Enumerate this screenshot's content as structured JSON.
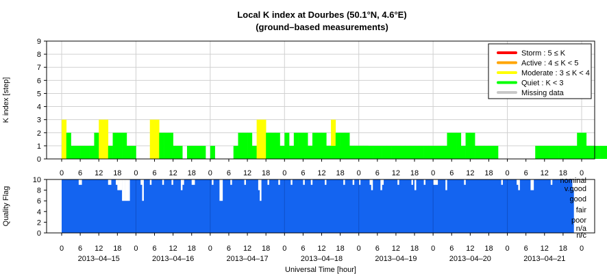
{
  "chart_data": [
    {
      "type": "bar",
      "title": "Local K index at Dourbes (50.1°N, 4.6°E)",
      "subtitle": "(ground–based measurements)",
      "ylabel": "K index [step]",
      "ylim": [
        0,
        9
      ],
      "yticks": [
        "0",
        "1",
        "2",
        "3",
        "4",
        "5",
        "6",
        "7",
        "8",
        "9"
      ],
      "xlim_hours": [
        0,
        168
      ],
      "xticks": [
        "0",
        "6",
        "12",
        "18",
        "0",
        "6",
        "12",
        "18",
        "0",
        "6",
        "12",
        "18",
        "0",
        "6",
        "12",
        "18",
        "0",
        "6",
        "12",
        "18",
        "0",
        "6",
        "12",
        "18",
        "0",
        "6",
        "12",
        "18",
        "0"
      ],
      "grid": true,
      "legend_position": "top-right",
      "legend": [
        {
          "label": "Storm : 5 ≤ K",
          "color": "#ff0000"
        },
        {
          "label": "Active : 4 ≤ K < 5",
          "color": "#ffa500"
        },
        {
          "label": "Moderate : 3 ≤ K < 4",
          "color": "#ffff00"
        },
        {
          "label": "Quiet : K < 3",
          "color": "#00ff00"
        },
        {
          "label": "Missing data",
          "color": "#c8c8c8"
        }
      ],
      "bar_hours": 1.5,
      "series": [
        {
          "start_hour": 0,
          "values": [
            3,
            2,
            1,
            1,
            1,
            1,
            1,
            2,
            3,
            3,
            1,
            2,
            2,
            2,
            1,
            1,
            0,
            0,
            0,
            3,
            3,
            2,
            2,
            2,
            1,
            1,
            0,
            1,
            1,
            1,
            1,
            0,
            1,
            0,
            0,
            0,
            0,
            1,
            2,
            2,
            2,
            1,
            3,
            3,
            2,
            2,
            2,
            1,
            2,
            1,
            2,
            2,
            2,
            1,
            2,
            2,
            2,
            1,
            3,
            2,
            2,
            2,
            1,
            1,
            1,
            1
          ]
        },
        {
          "start_hour": 75,
          "values": [
            1,
            1,
            1,
            1,
            1,
            1,
            1,
            1,
            1,
            1,
            1,
            1,
            1,
            1,
            1,
            1,
            1,
            1,
            1,
            1,
            1,
            1,
            1,
            1,
            1,
            1,
            1,
            1,
            1,
            1,
            1,
            1,
            1,
            2,
            2,
            2,
            1,
            2,
            2,
            1,
            1,
            1,
            1,
            1,
            0,
            0,
            0,
            0,
            0,
            0,
            0,
            0,
            1,
            1,
            1,
            1,
            1,
            1,
            1,
            1,
            1,
            2,
            2,
            1,
            1,
            1,
            1,
            1,
            0,
            1,
            1,
            1,
            0,
            0,
            0,
            0,
            0,
            0,
            0,
            0,
            0,
            0,
            0,
            0,
            0,
            0,
            1,
            1,
            1,
            1,
            1,
            2,
            2,
            2,
            2,
            2,
            2,
            2,
            2,
            2,
            1,
            2,
            2,
            1,
            1,
            1,
            0,
            1,
            1,
            1,
            1,
            1,
            1,
            0,
            0,
            0,
            0,
            0,
            0,
            0,
            0,
            0,
            0,
            0,
            0,
            0,
            1,
            1,
            1,
            1,
            2,
            2,
            1,
            1,
            1,
            1,
            2,
            2,
            2,
            2,
            1,
            1,
            1,
            1,
            1,
            1,
            1,
            1,
            1,
            1,
            1,
            1,
            1,
            1,
            1,
            1
          ]
        }
      ]
    },
    {
      "type": "bar",
      "ylabel": "Quality Flag",
      "xlabel": "Universal Time [hour]",
      "ylim": [
        0,
        10
      ],
      "yticks": [
        "0",
        "2",
        "4",
        "6",
        "8",
        "10"
      ],
      "right_labels": [
        "nominal",
        "v.good",
        "good",
        "fair",
        "poor",
        "n/a",
        "n/c"
      ],
      "xticks": [
        "0",
        "6",
        "12",
        "18",
        "0",
        "6",
        "12",
        "18",
        "0",
        "6",
        "12",
        "18",
        "0",
        "6",
        "12",
        "18",
        "0",
        "6",
        "12",
        "18",
        "0",
        "6",
        "12",
        "18",
        "0",
        "6",
        "12",
        "18",
        "0"
      ],
      "dates": [
        "2013–04–15",
        "2013–04–16",
        "2013–04–17",
        "2013–04–18",
        "2013–04–19",
        "2013–04–20",
        "2013–04–21"
      ],
      "color": "#1464f0",
      "bar_hours": 0.5,
      "dips": [
        {
          "h": 5.5,
          "v": 9
        },
        {
          "h": 6,
          "v": 9
        },
        {
          "h": 15,
          "v": 9
        },
        {
          "h": 15.5,
          "v": 9
        },
        {
          "h": 17.5,
          "v": 9
        },
        {
          "h": 18,
          "v": 8
        },
        {
          "h": 18.5,
          "v": 8
        },
        {
          "h": 19,
          "v": 8
        },
        {
          "h": 19.5,
          "v": 6
        },
        {
          "h": 20,
          "v": 6
        },
        {
          "h": 20.5,
          "v": 6
        },
        {
          "h": 21,
          "v": 6
        },
        {
          "h": 21.5,
          "v": 6
        },
        {
          "h": 25.5,
          "v": 9
        },
        {
          "h": 26,
          "v": 6
        },
        {
          "h": 28.5,
          "v": 9
        },
        {
          "h": 32.5,
          "v": 9
        },
        {
          "h": 35.5,
          "v": 9
        },
        {
          "h": 38.5,
          "v": 8
        },
        {
          "h": 39,
          "v": 9
        },
        {
          "h": 42,
          "v": 9
        },
        {
          "h": 42.5,
          "v": 9
        },
        {
          "h": 48.5,
          "v": 9
        },
        {
          "h": 51,
          "v": 6
        },
        {
          "h": 51.5,
          "v": 6
        },
        {
          "h": 54.5,
          "v": 9
        },
        {
          "h": 59,
          "v": 9
        },
        {
          "h": 63.5,
          "v": 8
        },
        {
          "h": 64,
          "v": 6
        },
        {
          "h": 66.5,
          "v": 9
        },
        {
          "h": 70,
          "v": 9
        },
        {
          "h": 74,
          "v": 9
        },
        {
          "h": 78,
          "v": 9
        },
        {
          "h": 80.5,
          "v": 9
        },
        {
          "h": 85,
          "v": 9
        },
        {
          "h": 91,
          "v": 9
        },
        {
          "h": 94,
          "v": 9
        },
        {
          "h": 96,
          "v": 9
        },
        {
          "h": 99.5,
          "v": 9
        },
        {
          "h": 100,
          "v": 8
        },
        {
          "h": 103,
          "v": 8
        },
        {
          "h": 103.5,
          "v": 9
        },
        {
          "h": 108.5,
          "v": 9
        },
        {
          "h": 113,
          "v": 9
        },
        {
          "h": 114,
          "v": 8
        },
        {
          "h": 117,
          "v": 9
        },
        {
          "h": 120,
          "v": 9
        },
        {
          "h": 120.5,
          "v": 9
        },
        {
          "h": 121,
          "v": 9
        },
        {
          "h": 124,
          "v": 8
        },
        {
          "h": 130,
          "v": 9
        },
        {
          "h": 142,
          "v": 9
        },
        {
          "h": 147,
          "v": 9
        },
        {
          "h": 147.5,
          "v": 8
        },
        {
          "h": 151.5,
          "v": 8
        },
        {
          "h": 152,
          "v": 8
        },
        {
          "h": 158,
          "v": 9
        },
        {
          "h": 165,
          "v": 8
        }
      ],
      "end_hour": 165.5
    }
  ]
}
